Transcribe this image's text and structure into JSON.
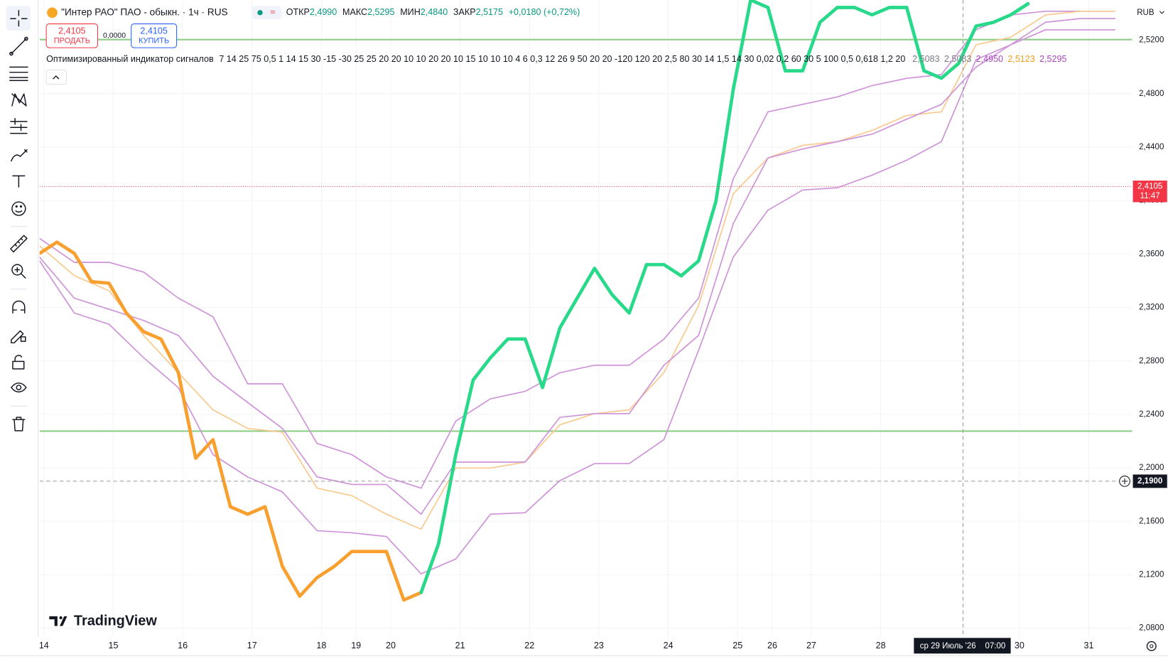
{
  "header": {
    "symbol": "\"Интер РАО\" ПАО - обыкн. · 1ч · RUS",
    "ohlc": [
      {
        "label": "ОТКР",
        "value": "2,4990"
      },
      {
        "label": "МАКС",
        "value": "2,5295"
      },
      {
        "label": "МИН",
        "value": "2,4840"
      },
      {
        "label": "ЗАКР",
        "value": "2,5175"
      }
    ],
    "change": "+0,0180 (+0,72%)",
    "sell": {
      "price": "2,4105",
      "label": "ПРОДАТЬ"
    },
    "spread": "0,0000",
    "buy": {
      "price": "2,4105",
      "label": "КУПИТЬ"
    },
    "indicator": {
      "title": "Оптимизированный индикатор сигналов",
      "params": "7 14 25 75 0,5 1 14 15 30 -15 -30 25 25 20 20 10 10 20 20 10 15 10 10 10 4 6 0,3 12 26 9 50 20 20 -120 120 20 2,5 80 30 14 1,5 14 30 0,02 0,2 60 30 5 100 0,5 0,618 1,2 20",
      "values": [
        {
          "text": "2,5083",
          "color": "#787b86"
        },
        {
          "text": "2,5083",
          "color": "#787b86"
        },
        {
          "text": "2,4950",
          "color": "#ab47bc"
        },
        {
          "text": "2,5123",
          "color": "#f0a020"
        },
        {
          "text": "2,5295",
          "color": "#ab47bc"
        }
      ]
    },
    "currency": "RUB"
  },
  "logo": "TradingView",
  "chart_data": {
    "type": "line",
    "grid": true,
    "xlim": [
      0,
      252
    ],
    "ylim": [
      2.0733,
      2.5501
    ],
    "yticks": [
      {
        "value": 2.08,
        "label": "2,0800"
      },
      {
        "value": 2.12,
        "label": "2,1200"
      },
      {
        "value": 2.16,
        "label": "2,1600"
      },
      {
        "value": 2.2,
        "label": "2,2000"
      },
      {
        "value": 2.24,
        "label": "2,2400"
      },
      {
        "value": 2.28,
        "label": "2,2800"
      },
      {
        "value": 2.32,
        "label": "2,3200"
      },
      {
        "value": 2.36,
        "label": "2,3600"
      },
      {
        "value": 2.4,
        "label": "2,4000"
      },
      {
        "value": 2.44,
        "label": "2,4400"
      },
      {
        "value": 2.48,
        "label": "2,4800"
      },
      {
        "value": 2.52,
        "label": "2,5200"
      }
    ],
    "xticks": [
      {
        "value": 1,
        "label": "14"
      },
      {
        "value": 17,
        "label": "15"
      },
      {
        "value": 33,
        "label": "16"
      },
      {
        "value": 49,
        "label": "17"
      },
      {
        "value": 65,
        "label": "18"
      },
      {
        "value": 73,
        "label": "19"
      },
      {
        "value": 81,
        "label": "20"
      },
      {
        "value": 97,
        "label": "21"
      },
      {
        "value": 113,
        "label": "22"
      },
      {
        "value": 129,
        "label": "23"
      },
      {
        "value": 145,
        "label": "24"
      },
      {
        "value": 161,
        "label": "25"
      },
      {
        "value": 169,
        "label": "26"
      },
      {
        "value": 178,
        "label": "27"
      },
      {
        "value": 194,
        "label": "28"
      },
      {
        "value": 226,
        "label": "30"
      },
      {
        "value": 242,
        "label": "31"
      }
    ],
    "x": [
      0,
      8,
      16,
      24,
      32,
      40,
      48,
      56,
      64,
      72,
      80,
      88,
      96,
      104,
      112,
      120,
      128,
      136,
      144,
      152,
      160,
      168,
      176,
      184,
      192,
      200,
      208,
      216,
      224,
      232,
      240,
      248
    ],
    "levels": [
      {
        "value": 2.5205,
        "color": "#8fce86"
      },
      {
        "value": 2.2275,
        "color": "#8fce86"
      }
    ],
    "series": [
      {
        "color": "#ce93d8",
        "width": 1.6,
        "values": [
          2.3717,
          2.3538,
          2.3538,
          2.3465,
          2.327,
          2.3131,
          2.2629,
          2.2629,
          2.2183,
          2.2099,
          2.1932,
          2.1848,
          2.235,
          2.2517,
          2.2573,
          2.2712,
          2.2768,
          2.2768,
          2.2963,
          2.327,
          2.4163,
          2.4664,
          2.472,
          2.4776,
          2.486,
          2.4915,
          2.4943,
          2.5278,
          2.5389,
          2.5417,
          2.5417,
          2.5417
        ]
      },
      {
        "color": "#f9c98d",
        "width": 1.6,
        "values": [
          2.3661,
          2.3438,
          2.3326,
          2.2991,
          2.2712,
          2.2434,
          2.2295,
          2.2267,
          2.1848,
          2.1792,
          2.1653,
          2.1541,
          2.1999,
          2.1999,
          2.2043,
          2.2322,
          2.2406,
          2.2434,
          2.2712,
          2.3214,
          2.4051,
          2.4319,
          2.4413,
          2.4441,
          2.4525,
          2.4637,
          2.4664,
          2.5166,
          2.5222,
          2.5389,
          2.5417,
          2.5417
        ]
      },
      {
        "color": "#ce93d8",
        "width": 1.6,
        "values": [
          2.3577,
          2.327,
          2.3187,
          2.3103,
          2.2991,
          2.2685,
          2.2489,
          2.2295,
          2.1932,
          2.1876,
          2.1876,
          2.1653,
          2.2043,
          2.2043,
          2.2043,
          2.2378,
          2.2406,
          2.2406,
          2.2768,
          2.2991,
          2.3828,
          2.4319,
          2.4386,
          2.4441,
          2.4497,
          2.4609,
          2.472,
          2.4999,
          2.5166,
          2.5334,
          2.5362,
          2.5362
        ]
      },
      {
        "color": "#ce93d8",
        "width": 1.6,
        "values": [
          2.3549,
          2.3159,
          2.3075,
          2.2824,
          2.2601,
          2.2099,
          2.1932,
          2.182,
          2.153,
          2.1514,
          2.1486,
          2.1207,
          2.1318,
          2.1653,
          2.1664,
          2.1904,
          2.2032,
          2.2032,
          2.2211,
          2.288,
          2.3577,
          2.3928,
          2.4079,
          2.4096,
          2.419,
          2.4302,
          2.4441,
          2.5055,
          2.5166,
          2.5278,
          2.5278,
          2.5278
        ]
      },
      {
        "color": "#f7a030",
        "width": 4.5,
        "x": [
          0,
          4,
          8,
          12,
          16,
          20,
          24,
          28,
          32,
          36,
          40,
          44,
          48,
          52,
          56,
          60,
          64,
          68,
          72,
          76,
          80,
          84,
          88
        ],
        "values": [
          2.3605,
          2.3689,
          2.3605,
          2.3393,
          2.3382,
          2.3159,
          2.3019,
          2.2964,
          2.2713,
          2.2072,
          2.2211,
          2.1709,
          2.1653,
          2.1709,
          2.1263,
          2.104,
          2.1179,
          2.1263,
          2.1374,
          2.1374,
          2.1374,
          2.1011,
          2.1067
        ]
      },
      {
        "color": "#28d98a",
        "width": 4.5,
        "x": [
          88,
          92,
          96,
          100,
          104,
          108,
          112,
          116,
          120,
          124,
          128,
          132,
          136,
          140,
          144,
          148,
          152,
          156,
          160,
          164,
          168,
          172,
          176,
          180,
          184,
          188,
          192,
          196,
          200,
          204,
          208,
          212,
          216,
          220,
          224,
          228
        ],
        "values": [
          2.1067,
          2.143,
          2.2099,
          2.2657,
          2.2824,
          2.2964,
          2.2964,
          2.2601,
          2.3047,
          2.327,
          2.3493,
          2.3298,
          2.3159,
          2.3521,
          2.3521,
          2.3437,
          2.3549,
          2.3995,
          2.4832,
          2.5501,
          2.5445,
          2.4971,
          2.4971,
          2.5334,
          2.5445,
          2.5445,
          2.539,
          2.5445,
          2.5445,
          2.4971,
          2.4916,
          2.5027,
          2.5306,
          2.5334,
          2.539,
          2.5473
        ]
      }
    ],
    "price_line": {
      "value": 2.4105,
      "label": "2,4105",
      "countdown": "11:47",
      "color": "#f23645"
    },
    "crosshair": {
      "x": 213,
      "date": "ср 29 Июль '26",
      "time": "07:00",
      "y": 2.19,
      "y_label": "2,1900"
    }
  }
}
